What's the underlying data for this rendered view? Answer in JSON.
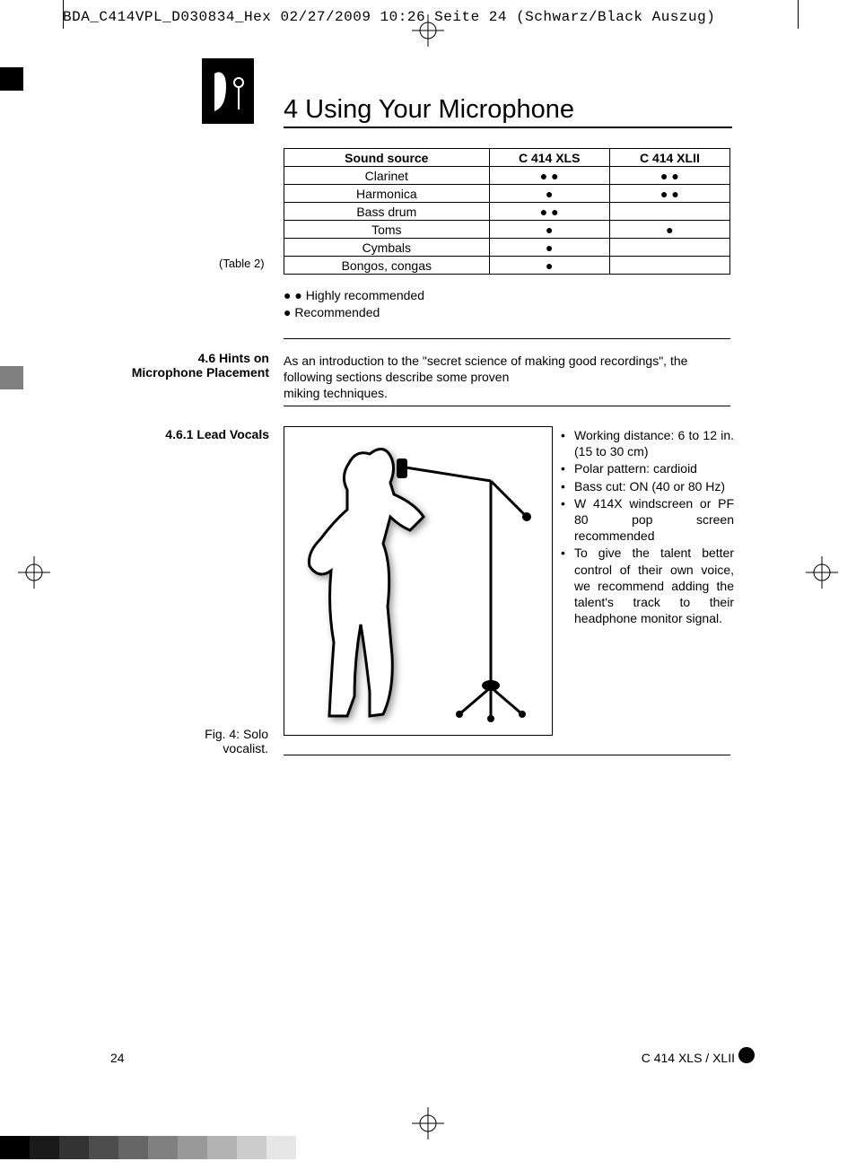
{
  "header": "BDA_C414VPL_D030834_Hex  02/27/2009  10:26  Seite 24    (Schwarz/Black Auszug)",
  "chapter_title": "4 Using Your Microphone",
  "table": {
    "columns": [
      "Sound source",
      "C 414 XLS",
      "C 414 XLII"
    ],
    "rows": [
      [
        "Clarinet",
        "● ●",
        "● ●"
      ],
      [
        "Harmonica",
        "●",
        "● ●"
      ],
      [
        "Bass drum",
        "● ●",
        ""
      ],
      [
        "Toms",
        "●",
        "●"
      ],
      [
        "Cymbals",
        "●",
        ""
      ],
      [
        "Bongos, congas",
        "●",
        ""
      ]
    ],
    "caption": "(Table 2)"
  },
  "legend": {
    "l1": "● ● Highly recommended",
    "l2": "● Recommended"
  },
  "section46": {
    "label_l1": "4.6 Hints on",
    "label_l2": "Microphone Placement",
    "text_l1": "As an introduction to the \"secret science of making good recordings\", the following sections describe some proven",
    "text_l2": "miking techniques."
  },
  "section461": {
    "label": "4.6.1 Lead Vocals",
    "fig_caption": "Fig. 4: Solo vocalist.",
    "bullets": [
      "Working distance: 6 to 12 in. (15 to 30 cm)",
      "Polar pattern: cardioid",
      "Bass cut: ON (40 or 80 Hz)",
      "W 414X windscreen or PF 80 pop screen recommended",
      "To give the talent better control of their own voice, we recommend adding the talent's track to their headphone monitor signal."
    ]
  },
  "footer": {
    "page": "24",
    "model": "C 414 XLS / XLII"
  },
  "grayscale": [
    "#000000",
    "#1a1a1a",
    "#333333",
    "#4d4d4d",
    "#666666",
    "#808080",
    "#999999",
    "#b3b3b3",
    "#cccccc",
    "#e6e6e6",
    "#ffffff"
  ]
}
